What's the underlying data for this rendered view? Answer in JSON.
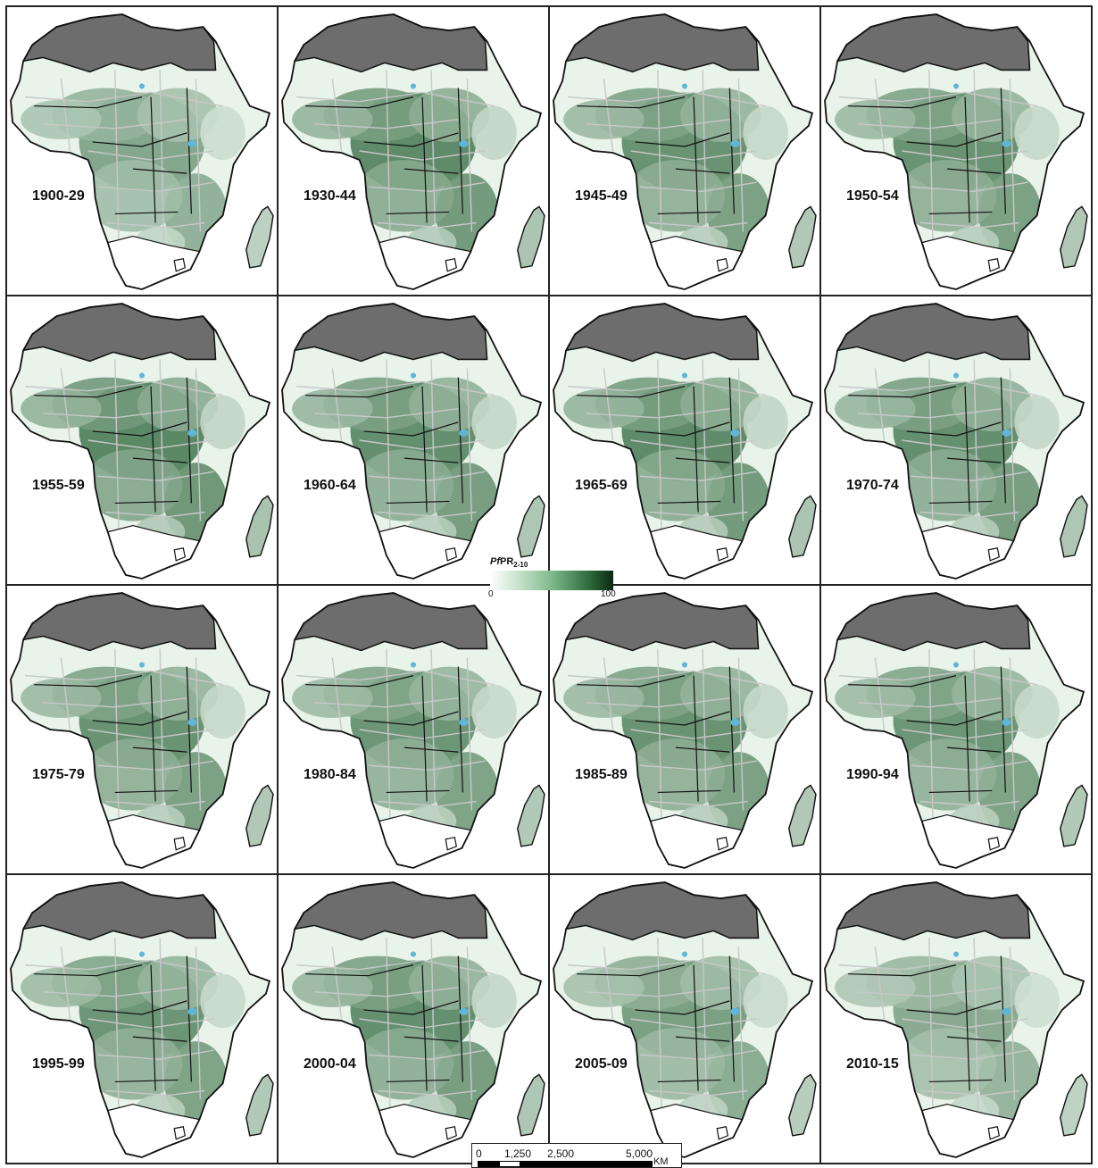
{
  "panels": [
    {
      "label": "1900-29",
      "intensity": 0.55
    },
    {
      "label": "1930-44",
      "intensity": 0.75
    },
    {
      "label": "1945-49",
      "intensity": 0.7
    },
    {
      "label": "1950-54",
      "intensity": 0.7
    },
    {
      "label": "1955-59",
      "intensity": 0.78
    },
    {
      "label": "1960-64",
      "intensity": 0.72
    },
    {
      "label": "1965-69",
      "intensity": 0.75
    },
    {
      "label": "1970-74",
      "intensity": 0.72
    },
    {
      "label": "1975-79",
      "intensity": 0.7
    },
    {
      "label": "1980-84",
      "intensity": 0.68
    },
    {
      "label": "1985-89",
      "intensity": 0.7
    },
    {
      "label": "1990-94",
      "intensity": 0.68
    },
    {
      "label": "1995-99",
      "intensity": 0.68
    },
    {
      "label": "2000-04",
      "intensity": 0.72
    },
    {
      "label": "2005-09",
      "intensity": 0.6
    },
    {
      "label": "2010-15",
      "intensity": 0.52
    }
  ],
  "legend": {
    "title_italic": "Pf",
    "title_main": "PR",
    "title_sub": "2-10",
    "min": "0",
    "max": "100"
  },
  "scalebar": {
    "ticks": [
      "0",
      "1,250",
      "2,500",
      "5,000"
    ],
    "unit": "KM"
  },
  "colors": {
    "excluded": "#6d6d6d",
    "border": "#111111",
    "admin_border": "#c8c8c8",
    "low": "#e8f3ea",
    "high": "#1f5a2e",
    "water": "#5fb6d8"
  }
}
